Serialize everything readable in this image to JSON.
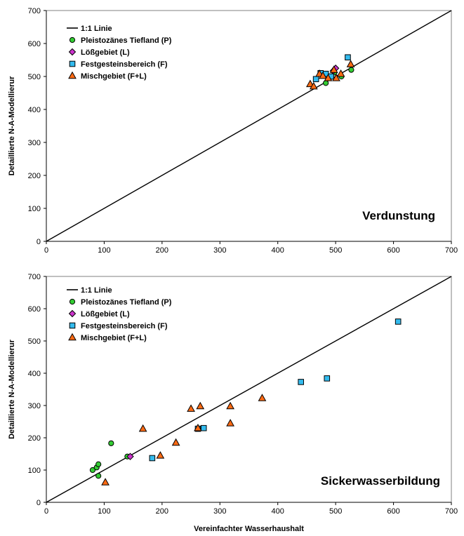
{
  "chart_data": [
    {
      "type": "scatter",
      "title": "",
      "annotation": "Verdunstung",
      "xlabel": "",
      "ylabel": "Detaillierte N-A-Modellierur",
      "xlim": [
        0,
        700
      ],
      "ylim": [
        0,
        700
      ],
      "xticks": [
        0,
        100,
        200,
        300,
        400,
        500,
        600,
        700
      ],
      "yticks": [
        0,
        100,
        200,
        300,
        400,
        500,
        600,
        700
      ],
      "grid": false,
      "legend_position": "top-left",
      "reference_line": {
        "name": "1:1 Linie",
        "from": [
          0,
          0
        ],
        "to": [
          700,
          700
        ]
      },
      "series": [
        {
          "name": "Pleistozänes Tiefland (P)",
          "marker": "circle",
          "color": "#33cc33",
          "points": [
            [
              483,
              480
            ],
            [
              510,
              500
            ],
            [
              527,
              520
            ],
            [
              498,
              512
            ]
          ]
        },
        {
          "name": "Lößgebiet (L)",
          "marker": "diamond",
          "color": "#cc33cc",
          "points": [
            [
              500,
              525
            ],
            [
              496,
              517
            ]
          ]
        },
        {
          "name": "Festgesteinsbereich (F)",
          "marker": "square",
          "color": "#33bbee",
          "points": [
            [
              521,
              558
            ],
            [
              466,
              492
            ],
            [
              483,
              508
            ],
            [
              492,
              500
            ],
            [
              474,
              510
            ]
          ]
        },
        {
          "name": "Mischgebiet (F+L)",
          "marker": "triangle",
          "color": "#ff6a13",
          "points": [
            [
              456,
              477
            ],
            [
              462,
              470
            ],
            [
              472,
              508
            ],
            [
              478,
              502
            ],
            [
              487,
              495
            ],
            [
              497,
              520
            ],
            [
              501,
              495
            ],
            [
              509,
              508
            ],
            [
              526,
              537
            ]
          ]
        }
      ]
    },
    {
      "type": "scatter",
      "title": "",
      "annotation": "Sickerwasserbildung",
      "xlabel": "Vereinfachter Wasserhaushalt",
      "ylabel": "Detaillierte N-A-Modellierur",
      "xlim": [
        0,
        700
      ],
      "ylim": [
        0,
        700
      ],
      "xticks": [
        0,
        100,
        200,
        300,
        400,
        500,
        600,
        700
      ],
      "yticks": [
        0,
        100,
        200,
        300,
        400,
        500,
        600,
        700
      ],
      "grid": false,
      "legend_position": "top-left",
      "reference_line": {
        "name": "1:1 Linie",
        "from": [
          0,
          0
        ],
        "to": [
          700,
          700
        ]
      },
      "series": [
        {
          "name": "Pleistozänes Tiefland (P)",
          "marker": "circle",
          "color": "#33cc33",
          "points": [
            [
              80,
              100
            ],
            [
              87,
              108
            ],
            [
              90,
              82
            ],
            [
              90,
              118
            ],
            [
              112,
              183
            ],
            [
              140,
              142
            ]
          ]
        },
        {
          "name": "Lößgebiet (L)",
          "marker": "diamond",
          "color": "#cc33cc",
          "points": [
            [
              145,
              142
            ]
          ]
        },
        {
          "name": "Festgesteinsbereich (F)",
          "marker": "square",
          "color": "#33bbee",
          "points": [
            [
              183,
              137
            ],
            [
              262,
              228
            ],
            [
              272,
              230
            ],
            [
              440,
              373
            ],
            [
              485,
              384
            ],
            [
              608,
              560
            ]
          ]
        },
        {
          "name": "Mischgebiet (F+L)",
          "marker": "triangle",
          "color": "#ff6a13",
          "points": [
            [
              102,
              62
            ],
            [
              167,
              228
            ],
            [
              197,
              145
            ],
            [
              224,
              185
            ],
            [
              250,
              290
            ],
            [
              262,
              230
            ],
            [
              266,
              298
            ],
            [
              318,
              245
            ],
            [
              318,
              298
            ],
            [
              373,
              323
            ]
          ]
        }
      ]
    }
  ]
}
